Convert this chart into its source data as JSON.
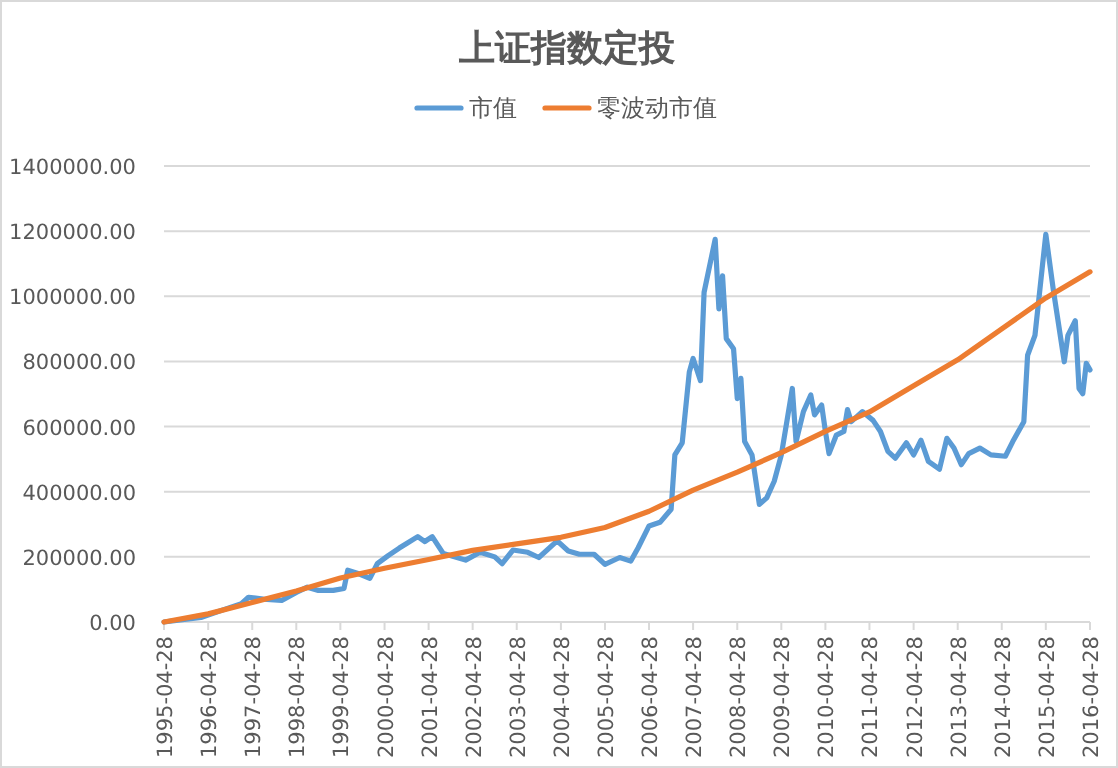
{
  "chart_data": {
    "type": "line",
    "title": "上证指数定投",
    "grid": "y",
    "legend": "top",
    "xlim": [
      "1995-04-28",
      "2016-04-28"
    ],
    "xticks": [
      {
        "value": "1995-04-28",
        "label": "1995-04-28"
      },
      {
        "value": "1996-04-28",
        "label": "1996-04-28"
      },
      {
        "value": "1997-04-28",
        "label": "1997-04-28"
      },
      {
        "value": "1998-04-28",
        "label": "1998-04-28"
      },
      {
        "value": "1999-04-28",
        "label": "1999-04-28"
      },
      {
        "value": "2000-04-28",
        "label": "2000-04-28"
      },
      {
        "value": "2001-04-28",
        "label": "2001-04-28"
      },
      {
        "value": "2002-04-28",
        "label": "2002-04-28"
      },
      {
        "value": "2003-04-28",
        "label": "2003-04-28"
      },
      {
        "value": "2004-04-28",
        "label": "2004-04-28"
      },
      {
        "value": "2005-04-28",
        "label": "2005-04-28"
      },
      {
        "value": "2006-04-28",
        "label": "2006-04-28"
      },
      {
        "value": "2007-04-28",
        "label": "2007-04-28"
      },
      {
        "value": "2008-04-28",
        "label": "2008-04-28"
      },
      {
        "value": "2009-04-28",
        "label": "2009-04-28"
      },
      {
        "value": "2010-04-28",
        "label": "2010-04-28"
      },
      {
        "value": "2011-04-28",
        "label": "2011-04-28"
      },
      {
        "value": "2012-04-28",
        "label": "2012-04-28"
      },
      {
        "value": "2013-04-28",
        "label": "2013-04-28"
      },
      {
        "value": "2014-04-28",
        "label": "2014-04-28"
      },
      {
        "value": "2015-04-28",
        "label": "2015-04-28"
      },
      {
        "value": "2016-04-28",
        "label": "2016-04-28"
      }
    ],
    "ylim": [
      0,
      1400000
    ],
    "yticks": [
      {
        "value": 0,
        "label": "0.00"
      },
      {
        "value": 200000,
        "label": "200000.00"
      },
      {
        "value": 400000,
        "label": "400000.00"
      },
      {
        "value": 600000,
        "label": "600000.00"
      },
      {
        "value": 800000,
        "label": "800000.00"
      },
      {
        "value": 1000000,
        "label": "1000000.00"
      },
      {
        "value": 1200000,
        "label": "1200000.00"
      },
      {
        "value": 1400000,
        "label": "1400000.00"
      }
    ],
    "series": [
      {
        "name": "市值",
        "color": "#5b9bd5",
        "x": [
          "1995-04-28",
          "1996-02-28",
          "1996-09-28",
          "1997-01-28",
          "1997-03-28",
          "1997-07-28",
          "1997-12-28",
          "1998-04-28",
          "1998-07-28",
          "1998-10-28",
          "1999-02-28",
          "1999-05-28",
          "1999-06-28",
          "1999-09-28",
          "1999-12-28",
          "2000-02-28",
          "2000-05-28",
          "2000-08-28",
          "2000-10-28",
          "2001-01-28",
          "2001-03-28",
          "2001-05-28",
          "2001-08-28",
          "2001-11-28",
          "2002-02-28",
          "2002-06-28",
          "2002-10-28",
          "2002-12-28",
          "2003-03-28",
          "2003-07-28",
          "2003-10-28",
          "2004-03-28",
          "2004-06-28",
          "2004-09-28",
          "2005-01-28",
          "2005-04-28",
          "2005-08-28",
          "2005-11-28",
          "2006-01-28",
          "2006-04-28",
          "2006-07-28",
          "2006-10-28",
          "2006-11-28",
          "2007-01-28",
          "2007-03-28",
          "2007-04-28",
          "2007-06-28",
          "2007-07-28",
          "2007-10-28",
          "2007-11-28",
          "2007-12-28",
          "2008-01-28",
          "2008-03-28",
          "2008-04-28",
          "2008-05-28",
          "2008-06-28",
          "2008-08-28",
          "2008-10-28",
          "2008-12-28",
          "2009-02-28",
          "2009-04-28",
          "2009-07-28",
          "2009-08-28",
          "2009-10-28",
          "2009-12-28",
          "2010-01-28",
          "2010-03-28",
          "2010-04-28",
          "2010-05-28",
          "2010-07-28",
          "2010-09-28",
          "2010-10-28",
          "2010-11-28",
          "2011-02-28",
          "2011-05-28",
          "2011-07-28",
          "2011-09-28",
          "2011-11-28",
          "2012-02-28",
          "2012-04-28",
          "2012-06-28",
          "2012-08-28",
          "2012-11-28",
          "2013-01-28",
          "2013-03-28",
          "2013-05-28",
          "2013-07-28",
          "2013-10-28",
          "2014-01-28",
          "2014-05-28",
          "2014-07-28",
          "2014-10-28",
          "2014-11-28",
          "2015-01-28",
          "2015-03-28",
          "2015-04-28",
          "2015-06-28",
          "2015-09-28",
          "2015-10-28",
          "2015-12-28",
          "2016-01-28",
          "2016-02-28",
          "2016-03-28",
          "2016-04-28"
        ],
        "values": [
          0,
          14000,
          41000,
          56000,
          76000,
          70000,
          66000,
          91000,
          107000,
          97000,
          97000,
          103000,
          159000,
          148000,
          134000,
          179000,
          204000,
          227000,
          241000,
          262000,
          247000,
          262000,
          210000,
          200000,
          190000,
          214000,
          200000,
          179000,
          221000,
          214000,
          198000,
          249000,
          218000,
          208000,
          208000,
          177000,
          198000,
          187000,
          228000,
          295000,
          306000,
          346000,
          513000,
          550000,
          768000,
          809000,
          741000,
          1012000,
          1175000,
          961000,
          1063000,
          870000,
          839000,
          686000,
          748000,
          554000,
          513000,
          361000,
          381000,
          432000,
          513000,
          717000,
          554000,
          646000,
          697000,
          636000,
          666000,
          585000,
          517000,
          574000,
          585000,
          652000,
          615000,
          646000,
          619000,
          585000,
          524000,
          503000,
          550000,
          513000,
          558000,
          493000,
          469000,
          564000,
          534000,
          483000,
          517000,
          534000,
          513000,
          509000,
          554000,
          615000,
          819000,
          880000,
          1084000,
          1190000,
          1023000,
          799000,
          880000,
          925000,
          717000,
          701000,
          794000,
          774000
        ]
      },
      {
        "name": "零波动市值",
        "color": "#ed7d31",
        "x": [
          "1995-04-28",
          "1996-04-28",
          "1997-04-28",
          "1998-04-28",
          "1999-04-28",
          "2000-04-28",
          "2001-04-28",
          "2002-04-28",
          "2003-04-28",
          "2004-04-28",
          "2005-04-28",
          "2006-04-28",
          "2007-04-28",
          "2008-04-28",
          "2009-04-28",
          "2010-04-28",
          "2011-04-28",
          "2012-04-28",
          "2013-04-28",
          "2014-04-28",
          "2015-04-28",
          "2016-04-28"
        ],
        "values": [
          0,
          25000,
          60000,
          95000,
          135000,
          165000,
          192000,
          220000,
          240000,
          260000,
          290000,
          340000,
          405000,
          460000,
          520000,
          585000,
          645000,
          725000,
          805000,
          900000,
          995000,
          1075000
        ]
      }
    ]
  }
}
